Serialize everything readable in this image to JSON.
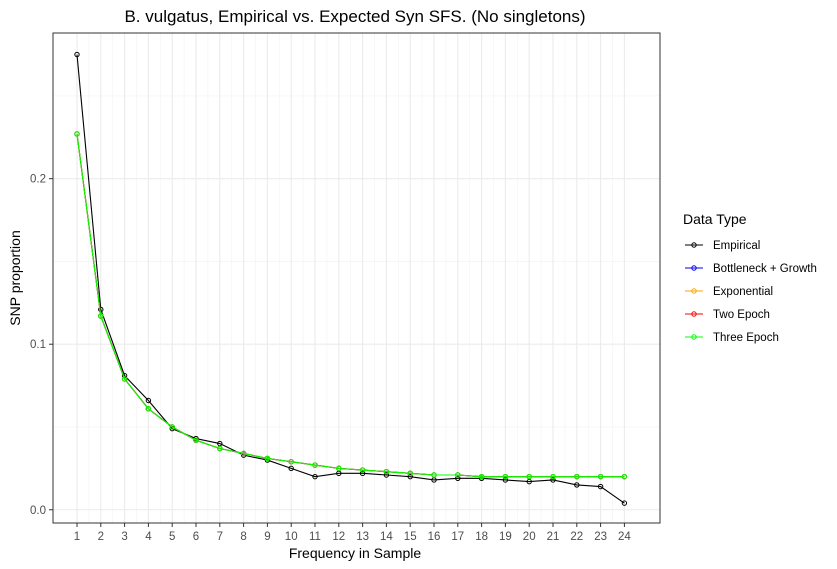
{
  "chart_data": {
    "type": "line",
    "title": "B. vulgatus, Empirical vs. Expected Syn SFS. (No singletons)",
    "xlabel": "Frequency in Sample",
    "ylabel": "SNP proportion",
    "x": [
      1,
      2,
      3,
      4,
      5,
      6,
      7,
      8,
      9,
      10,
      11,
      12,
      13,
      14,
      15,
      16,
      17,
      18,
      19,
      20,
      21,
      22,
      23,
      24
    ],
    "x_tick_labels": [
      "1",
      "2",
      "3",
      "4",
      "5",
      "6",
      "7",
      "8",
      "9",
      "10",
      "11",
      "12",
      "13",
      "14",
      "15",
      "16",
      "17",
      "18",
      "19",
      "20",
      "21",
      "22",
      "23",
      "24"
    ],
    "ylim": [
      -0.008,
      0.288
    ],
    "y_ticks": [
      0.0,
      0.1,
      0.2
    ],
    "y_tick_labels": [
      "0.0",
      "0.1",
      "0.2"
    ],
    "grid": true,
    "legend_placement": "right",
    "legend_title": "Data Type",
    "series": [
      {
        "name": "Empirical",
        "color": "#000000",
        "values": [
          0.275,
          0.121,
          0.081,
          0.066,
          0.049,
          0.043,
          0.04,
          0.033,
          0.03,
          0.025,
          0.02,
          0.022,
          0.022,
          0.021,
          0.02,
          0.018,
          0.019,
          0.019,
          0.018,
          0.017,
          0.018,
          0.015,
          0.014,
          0.004
        ]
      },
      {
        "name": "Bottleneck + Growth",
        "color": "#0000ff",
        "values": [
          0.227,
          0.117,
          0.079,
          0.061,
          0.05,
          0.042,
          0.037,
          0.034,
          0.031,
          0.029,
          0.027,
          0.025,
          0.024,
          0.023,
          0.022,
          0.021,
          0.021,
          0.02,
          0.02,
          0.02,
          0.02,
          0.02,
          0.02,
          0.02
        ]
      },
      {
        "name": "Exponential",
        "color": "#ffa500",
        "values": [
          0.227,
          0.117,
          0.079,
          0.061,
          0.05,
          0.042,
          0.037,
          0.034,
          0.031,
          0.029,
          0.027,
          0.025,
          0.024,
          0.023,
          0.022,
          0.021,
          0.021,
          0.02,
          0.02,
          0.02,
          0.02,
          0.02,
          0.02,
          0.02
        ]
      },
      {
        "name": "Two Epoch",
        "color": "#ff0000",
        "values": [
          0.227,
          0.117,
          0.079,
          0.061,
          0.05,
          0.042,
          0.037,
          0.034,
          0.031,
          0.029,
          0.027,
          0.025,
          0.024,
          0.023,
          0.022,
          0.021,
          0.021,
          0.02,
          0.02,
          0.02,
          0.02,
          0.02,
          0.02,
          0.02
        ]
      },
      {
        "name": "Three Epoch",
        "color": "#00ff00",
        "values": [
          0.227,
          0.117,
          0.079,
          0.061,
          0.05,
          0.042,
          0.037,
          0.034,
          0.031,
          0.029,
          0.027,
          0.025,
          0.024,
          0.023,
          0.022,
          0.021,
          0.021,
          0.02,
          0.02,
          0.02,
          0.02,
          0.02,
          0.02,
          0.02
        ]
      }
    ]
  }
}
